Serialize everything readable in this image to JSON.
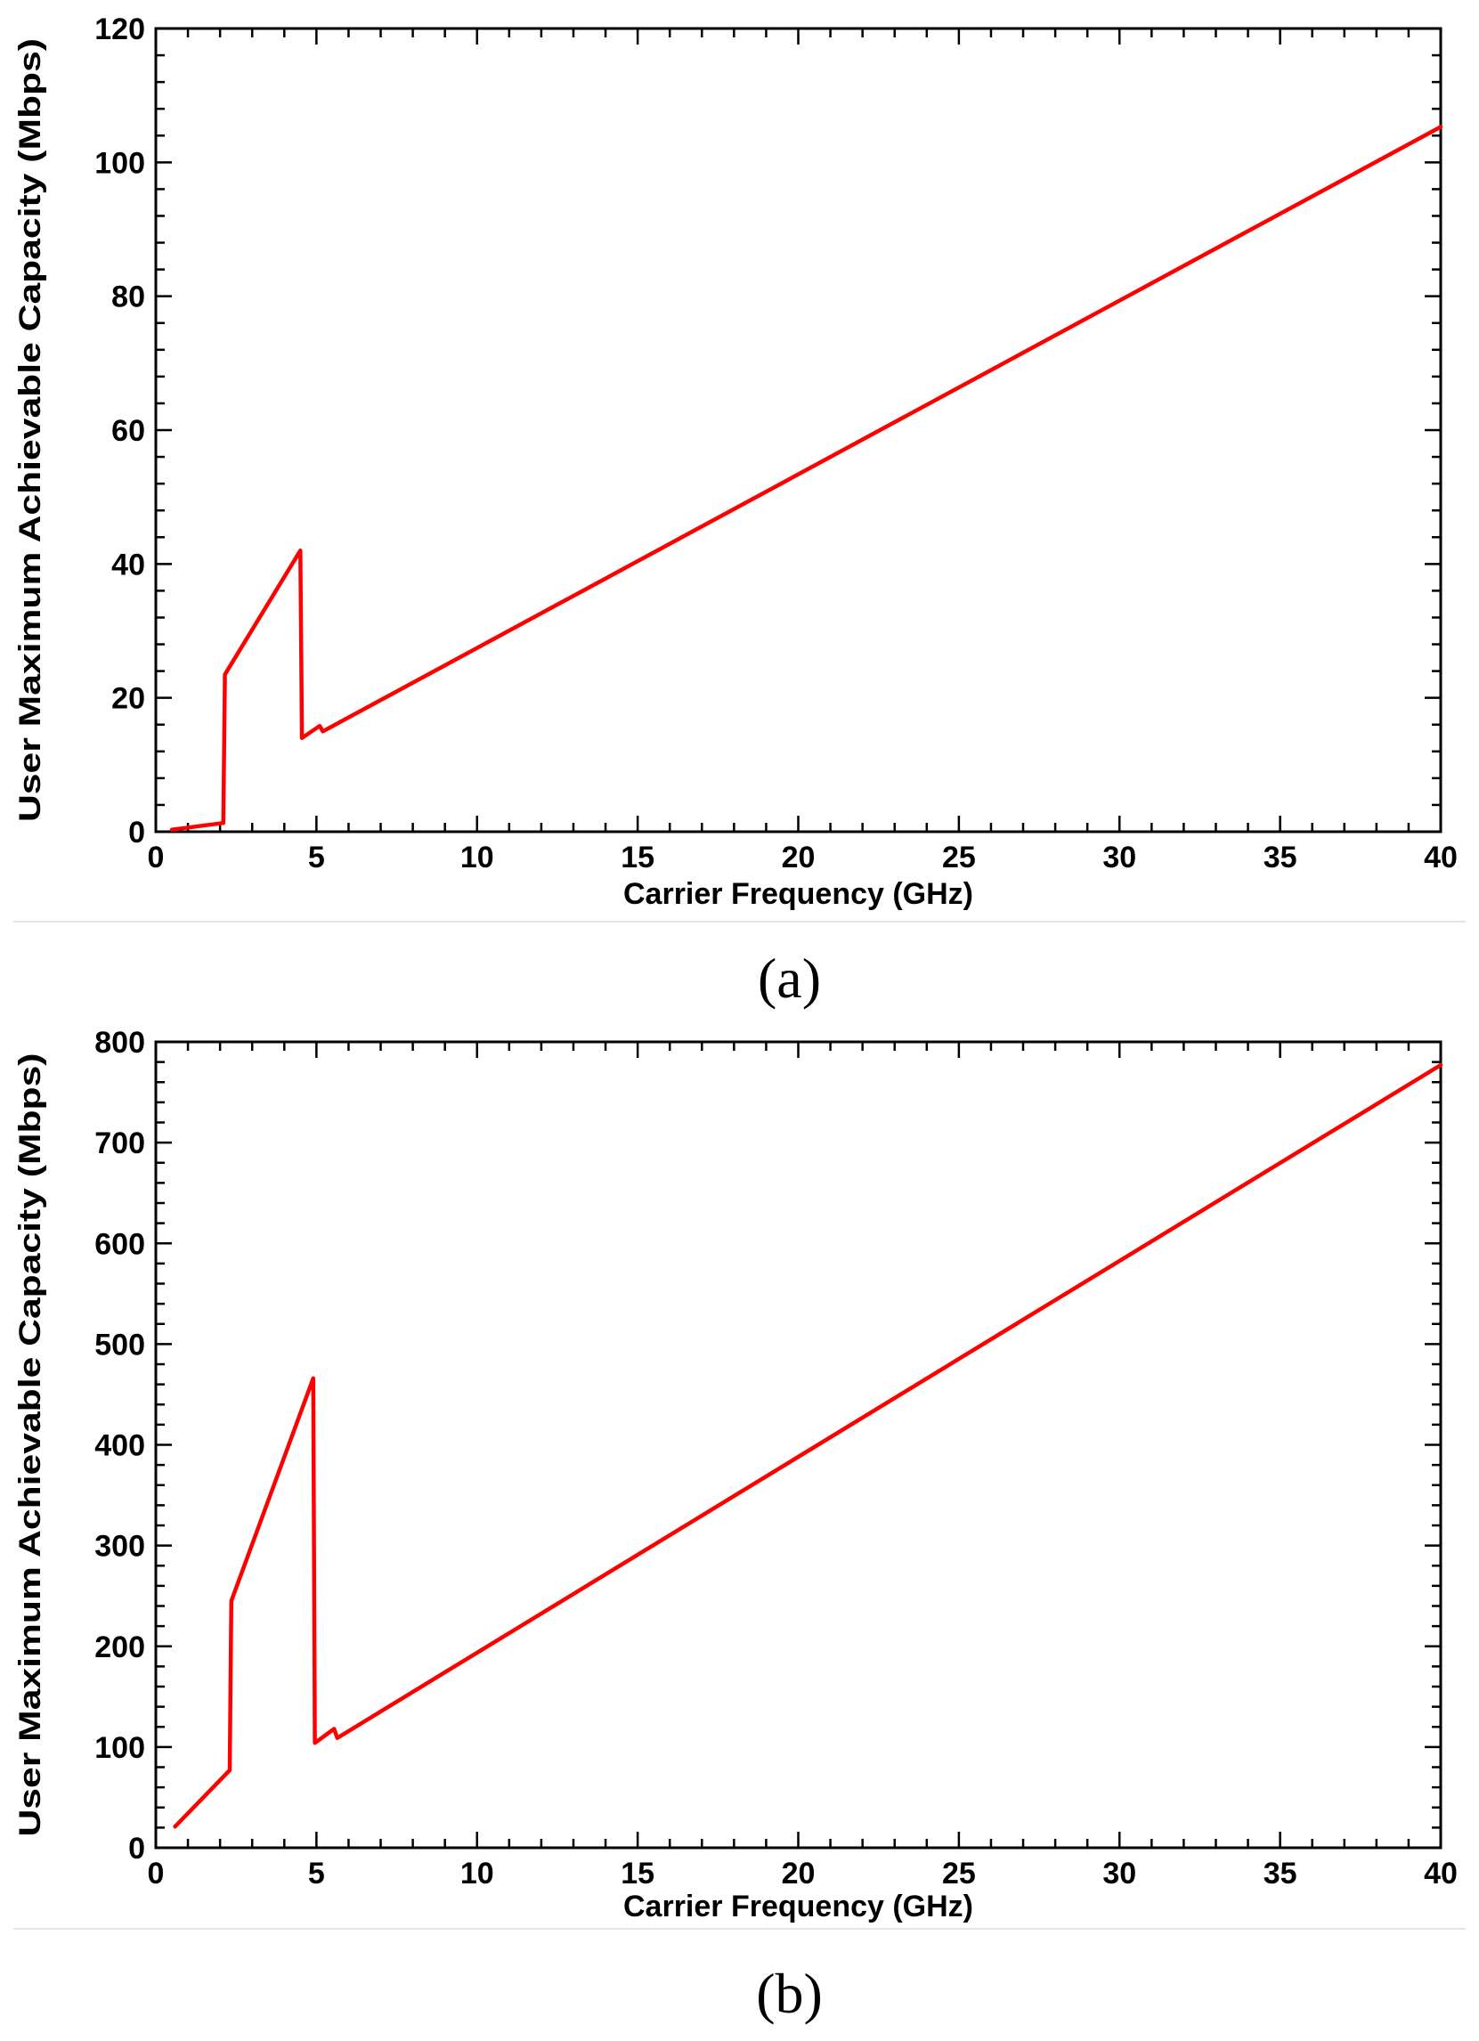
{
  "chart_data": [
    {
      "type": "line",
      "xlabel": "Carrier Frequency (GHz)",
      "ylabel": "User Maximum Achievable Capacity (Mbps)",
      "xlim": [
        0,
        40
      ],
      "ylim": [
        0,
        120
      ],
      "xticks": [
        0,
        5,
        10,
        15,
        20,
        25,
        30,
        35,
        40
      ],
      "yticks": [
        0,
        20,
        40,
        60,
        80,
        100,
        120
      ],
      "grid": false,
      "line_color": "#ff0000",
      "series": [
        {
          "x": [
            0.5,
            2.1,
            2.15,
            4.5,
            4.55,
            5.1,
            5.2,
            40
          ],
          "y": [
            0.3,
            1.3,
            23.5,
            42,
            14,
            15.8,
            15,
            105.3
          ]
        }
      ],
      "caption": "(a)"
    },
    {
      "type": "line",
      "xlabel": "Carrier Frequency (GHz)",
      "ylabel": "User Maximum Achievable Capacity (Mbps)",
      "xlim": [
        0,
        40
      ],
      "ylim": [
        0,
        800
      ],
      "xticks": [
        0,
        5,
        10,
        15,
        20,
        25,
        30,
        35,
        40
      ],
      "yticks": [
        0,
        100,
        200,
        300,
        400,
        500,
        600,
        700,
        800
      ],
      "grid": false,
      "line_color": "#ff0000",
      "series": [
        {
          "x": [
            0.6,
            2.3,
            2.35,
            4.9,
            4.95,
            5.55,
            5.65,
            40
          ],
          "y": [
            21,
            77,
            245,
            466,
            104,
            118,
            109,
            777
          ]
        }
      ],
      "caption": "(b)"
    }
  ]
}
